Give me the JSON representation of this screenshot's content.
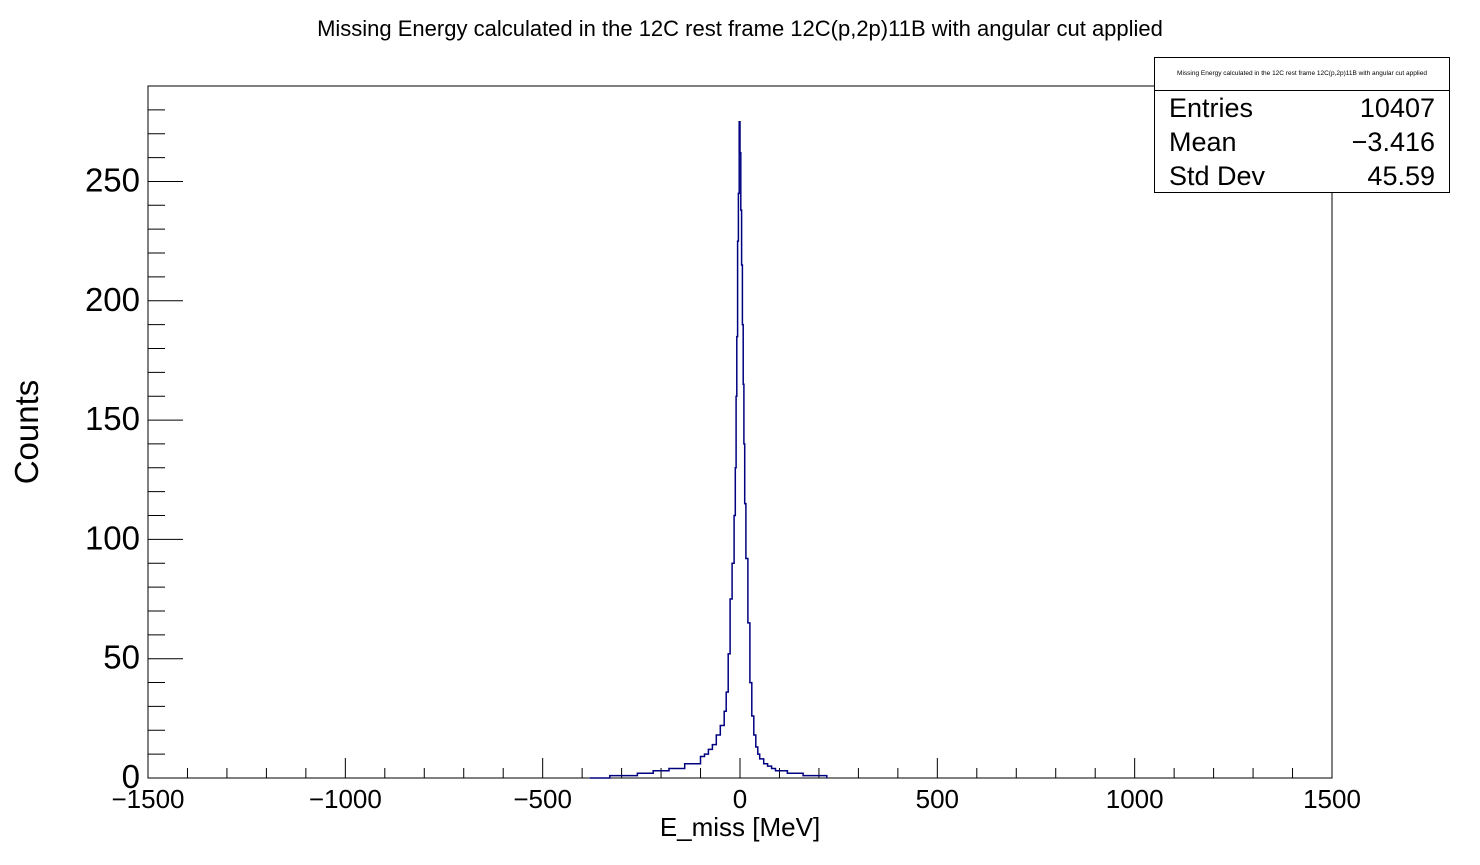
{
  "title": "Missing Energy calculated in the 12C rest frame 12C(p,2p)11B with angular cut applied",
  "stats": {
    "title": "Missing Energy calculated in the 12C rest frame 12C(p,2p)11B with angular cut applied",
    "rows": [
      {
        "label": "Entries",
        "value": "10407"
      },
      {
        "label": "Mean",
        "value": "−3.416"
      },
      {
        "label": "Std Dev",
        "value": "45.59"
      }
    ]
  },
  "chart_data": {
    "type": "line",
    "style": "histogram-step",
    "title": "Missing Energy calculated in the 12C rest frame 12C(p,2p)11B with angular cut applied",
    "xlabel": "E_miss [MeV]",
    "ylabel": "Counts",
    "xlim": [
      -1500,
      1500
    ],
    "ylim": [
      0,
      290
    ],
    "xticks": [
      -1500,
      -1000,
      -500,
      0,
      500,
      1000,
      1500
    ],
    "xtick_labels": [
      "−1500",
      "−1000",
      "−500",
      "0",
      "500",
      "1000",
      "1500"
    ],
    "yticks": [
      0,
      50,
      100,
      150,
      200,
      250
    ],
    "ytick_labels": [
      "0",
      "50",
      "100",
      "150",
      "200",
      "250"
    ],
    "line_color": "#000080",
    "grid": false,
    "series": [
      {
        "x": [
          -380,
          -330,
          -300,
          -280,
          -260,
          -240,
          -220,
          -200,
          -180,
          -160,
          -140,
          -120,
          -100,
          -90,
          -80,
          -70,
          -60,
          -50,
          -40,
          -35,
          -30,
          -25,
          -20,
          -15,
          -12,
          -10,
          -8,
          -6,
          -4,
          -2,
          0,
          2,
          4,
          6,
          8,
          10,
          12,
          15,
          20,
          25,
          30,
          35,
          40,
          45,
          50,
          60,
          70,
          80,
          90,
          100,
          120,
          140,
          160,
          180,
          200,
          220
        ],
        "y": [
          0,
          1,
          1,
          1,
          2,
          2,
          3,
          3,
          4,
          4,
          6,
          6,
          9,
          10,
          12,
          14,
          18,
          22,
          28,
          36,
          52,
          75,
          90,
          110,
          130,
          160,
          185,
          225,
          245,
          275,
          262,
          238,
          215,
          190,
          165,
          140,
          115,
          92,
          65,
          40,
          26,
          18,
          13,
          10,
          8,
          6,
          5,
          4,
          3,
          3,
          2,
          2,
          1,
          1,
          1,
          0
        ]
      }
    ]
  }
}
